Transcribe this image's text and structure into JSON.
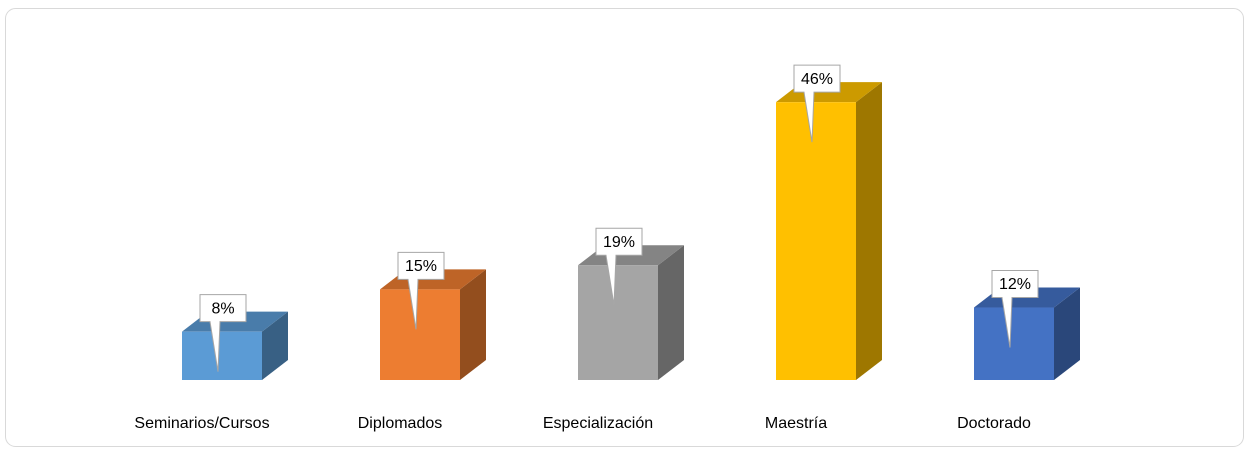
{
  "chart_data": {
    "type": "bar3d",
    "categories": [
      "Seminarios/Cursos",
      "Diplomados",
      "Especialización",
      "Maestría",
      "Doctorado"
    ],
    "values": [
      8,
      15,
      19,
      46,
      12
    ],
    "value_labels": [
      "8%",
      "15%",
      "19%",
      "46%",
      "12%"
    ],
    "colors": [
      "#5b9bd5",
      "#ed7d31",
      "#a5a5a5",
      "#ffc000",
      "#4472c4"
    ]
  }
}
